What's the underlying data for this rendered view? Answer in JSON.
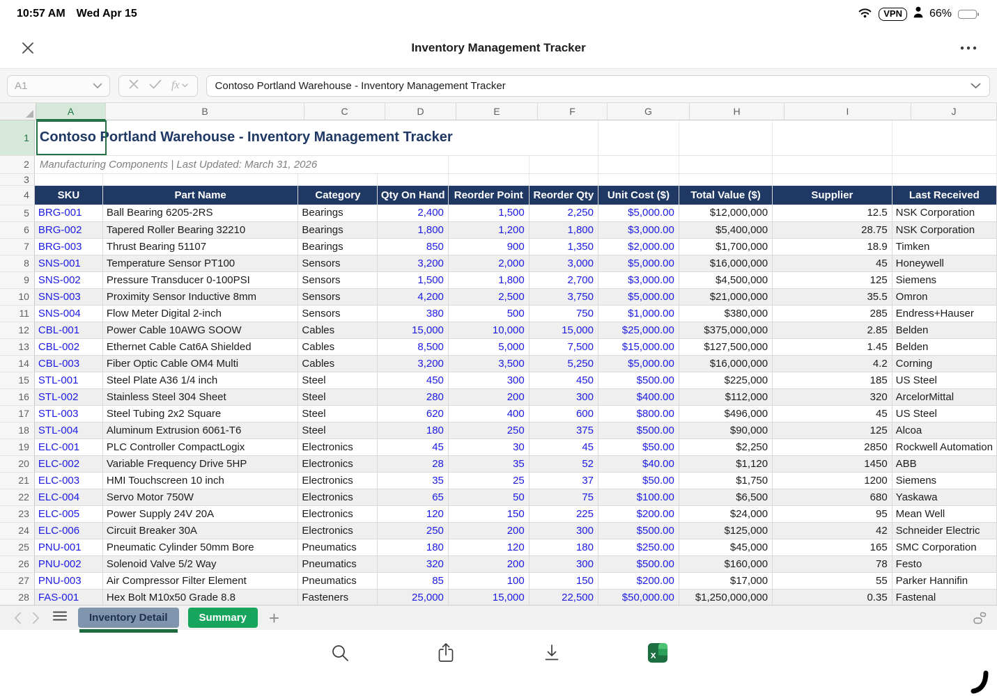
{
  "status_bar": {
    "time": "10:57 AM",
    "date": "Wed Apr 15",
    "vpn_label": "VPN",
    "battery_pct": "66%"
  },
  "title_bar": {
    "title": "Inventory Management Tracker"
  },
  "formula_bar": {
    "name_box": "A1",
    "fx_label": "fx",
    "formula": "Contoso Portland Warehouse - Inventory Management Tracker"
  },
  "sheet": {
    "column_letters": [
      "A",
      "B",
      "C",
      "D",
      "E",
      "F",
      "G",
      "H",
      "I",
      "J"
    ],
    "selected_column": "A",
    "selected_cell": "A1",
    "title": "Contoso Portland Warehouse - Inventory Management Tracker",
    "subtitle": "Manufacturing Components | Last Updated: March 31, 2026",
    "table_headers": [
      "SKU",
      "Part Name",
      "Category",
      "Qty On Hand",
      "Reorder Point",
      "Reorder Qty",
      "Unit Cost ($)",
      "Total Value ($)",
      "Supplier",
      "Last Received"
    ],
    "first_data_row_number": 5,
    "rows": [
      [
        "BRG-001",
        "Ball Bearing 6205-2RS",
        "Bearings",
        "2,400",
        "1,500",
        "2,250",
        "$5,000.00",
        "$12,000,000",
        "12.5",
        "NSK Corporation"
      ],
      [
        "BRG-002",
        "Tapered Roller Bearing 32210",
        "Bearings",
        "1,800",
        "1,200",
        "1,800",
        "$3,000.00",
        "$5,400,000",
        "28.75",
        "NSK Corporation"
      ],
      [
        "BRG-003",
        "Thrust Bearing 51107",
        "Bearings",
        "850",
        "900",
        "1,350",
        "$2,000.00",
        "$1,700,000",
        "18.9",
        "Timken"
      ],
      [
        "SNS-001",
        "Temperature Sensor PT100",
        "Sensors",
        "3,200",
        "2,000",
        "3,000",
        "$5,000.00",
        "$16,000,000",
        "45",
        "Honeywell"
      ],
      [
        "SNS-002",
        "Pressure Transducer 0-100PSI",
        "Sensors",
        "1,500",
        "1,800",
        "2,700",
        "$3,000.00",
        "$4,500,000",
        "125",
        "Siemens"
      ],
      [
        "SNS-003",
        "Proximity Sensor Inductive 8mm",
        "Sensors",
        "4,200",
        "2,500",
        "3,750",
        "$5,000.00",
        "$21,000,000",
        "35.5",
        "Omron"
      ],
      [
        "SNS-004",
        "Flow Meter Digital 2-inch",
        "Sensors",
        "380",
        "500",
        "750",
        "$1,000.00",
        "$380,000",
        "285",
        "Endress+Hauser"
      ],
      [
        "CBL-001",
        "Power Cable 10AWG SOOW",
        "Cables",
        "15,000",
        "10,000",
        "15,000",
        "$25,000.00",
        "$375,000,000",
        "2.85",
        "Belden"
      ],
      [
        "CBL-002",
        "Ethernet Cable Cat6A Shielded",
        "Cables",
        "8,500",
        "5,000",
        "7,500",
        "$15,000.00",
        "$127,500,000",
        "1.45",
        "Belden"
      ],
      [
        "CBL-003",
        "Fiber Optic Cable OM4 Multi",
        "Cables",
        "3,200",
        "3,500",
        "5,250",
        "$5,000.00",
        "$16,000,000",
        "4.2",
        "Corning"
      ],
      [
        "STL-001",
        "Steel Plate A36 1/4 inch",
        "Steel",
        "450",
        "300",
        "450",
        "$500.00",
        "$225,000",
        "185",
        "US Steel"
      ],
      [
        "STL-002",
        "Stainless Steel 304 Sheet",
        "Steel",
        "280",
        "200",
        "300",
        "$400.00",
        "$112,000",
        "320",
        "ArcelorMittal"
      ],
      [
        "STL-003",
        "Steel Tubing 2x2 Square",
        "Steel",
        "620",
        "400",
        "600",
        "$800.00",
        "$496,000",
        "45",
        "US Steel"
      ],
      [
        "STL-004",
        "Aluminum Extrusion 6061-T6",
        "Steel",
        "180",
        "250",
        "375",
        "$500.00",
        "$90,000",
        "125",
        "Alcoa"
      ],
      [
        "ELC-001",
        "PLC Controller CompactLogix",
        "Electronics",
        "45",
        "30",
        "45",
        "$50.00",
        "$2,250",
        "2850",
        "Rockwell Automation"
      ],
      [
        "ELC-002",
        "Variable Frequency Drive 5HP",
        "Electronics",
        "28",
        "35",
        "52",
        "$40.00",
        "$1,120",
        "1450",
        "ABB"
      ],
      [
        "ELC-003",
        "HMI Touchscreen 10 inch",
        "Electronics",
        "35",
        "25",
        "37",
        "$50.00",
        "$1,750",
        "1200",
        "Siemens"
      ],
      [
        "ELC-004",
        "Servo Motor 750W",
        "Electronics",
        "65",
        "50",
        "75",
        "$100.00",
        "$6,500",
        "680",
        "Yaskawa"
      ],
      [
        "ELC-005",
        "Power Supply 24V 20A",
        "Electronics",
        "120",
        "150",
        "225",
        "$200.00",
        "$24,000",
        "95",
        "Mean Well"
      ],
      [
        "ELC-006",
        "Circuit Breaker 30A",
        "Electronics",
        "250",
        "200",
        "300",
        "$500.00",
        "$125,000",
        "42",
        "Schneider Electric"
      ],
      [
        "PNU-001",
        "Pneumatic Cylinder 50mm Bore",
        "Pneumatics",
        "180",
        "120",
        "180",
        "$250.00",
        "$45,000",
        "165",
        "SMC Corporation"
      ],
      [
        "PNU-002",
        "Solenoid Valve 5/2 Way",
        "Pneumatics",
        "320",
        "200",
        "300",
        "$500.00",
        "$160,000",
        "78",
        "Festo"
      ],
      [
        "PNU-003",
        "Air Compressor Filter Element",
        "Pneumatics",
        "85",
        "100",
        "150",
        "$200.00",
        "$17,000",
        "55",
        "Parker Hannifin"
      ],
      [
        "FAS-001",
        "Hex Bolt M10x50 Grade 8.8",
        "Fasteners",
        "25,000",
        "15,000",
        "22,500",
        "$50,000.00",
        "$1,250,000,000",
        "0.35",
        "Fastenal"
      ]
    ]
  },
  "tabs": {
    "active_tab": "Inventory Detail",
    "second_tab": "Summary",
    "add_label": "+"
  },
  "toolbar_icons": [
    "search-icon",
    "share-icon",
    "download-icon",
    "excel-app-icon"
  ],
  "colors": {
    "header_fill": "#1f3864",
    "data_blue": "#1b1ae8",
    "selection_green": "#217346",
    "active_tab_fill": "#7f95ae",
    "summary_tab_fill": "#17a45c"
  }
}
